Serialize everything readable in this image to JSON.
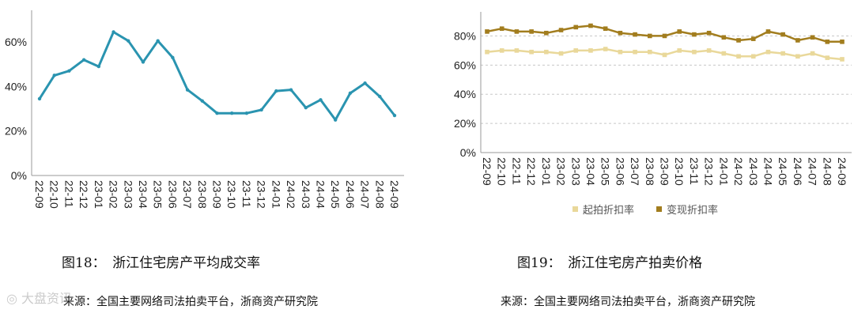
{
  "chart_data": [
    {
      "type": "line",
      "title": "",
      "xlabel": "",
      "ylabel": "",
      "ylim": [
        0,
        70
      ],
      "y_ticks": [
        "0%",
        "20%",
        "40%",
        "60%"
      ],
      "y_tick_values": [
        0,
        20,
        40,
        60
      ],
      "grid": false,
      "categories": [
        "22-09",
        "22-10",
        "22-11",
        "22-12",
        "23-01",
        "23-02",
        "23-03",
        "23-04",
        "23-05",
        "23-06",
        "23-07",
        "23-08",
        "23-09",
        "23-10",
        "23-11",
        "23-12",
        "24-01",
        "24-02",
        "24-03",
        "24-04",
        "24-05",
        "24-06",
        "24-07",
        "24-08",
        "24-09"
      ],
      "series": [
        {
          "color": "#2a94b0",
          "values": [
            34.5,
            45,
            47,
            52,
            49,
            64.5,
            60.5,
            51,
            60.5,
            53,
            38.5,
            33.5,
            28,
            28,
            28,
            29.5,
            38,
            38.5,
            30.5,
            34,
            25,
            37,
            41.5,
            35.5,
            27
          ]
        }
      ]
    },
    {
      "type": "line",
      "title": "",
      "xlabel": "",
      "ylabel": "",
      "ylim": [
        0,
        90
      ],
      "y_ticks": [
        "0%",
        "20%",
        "40%",
        "60%",
        "80%"
      ],
      "y_tick_values": [
        0,
        20,
        40,
        60,
        80
      ],
      "grid": true,
      "legend_position": "bottom",
      "categories": [
        "22-09",
        "22-10",
        "22-11",
        "22-12",
        "23-01",
        "23-02",
        "23-03",
        "23-04",
        "23-05",
        "23-06",
        "23-07",
        "23-08",
        "23-09",
        "23-10",
        "23-11",
        "23-12",
        "24-01",
        "24-02",
        "24-03",
        "24-04",
        "24-05",
        "24-06",
        "24-07",
        "24-08",
        "24-09"
      ],
      "series": [
        {
          "name": "起拍折扣率",
          "color": "#e9d89a",
          "values": [
            69,
            70,
            70,
            69,
            69,
            68,
            70,
            70,
            71,
            69,
            69,
            69,
            67,
            70,
            69,
            70,
            68,
            66,
            66,
            69,
            68,
            66,
            68,
            65,
            64
          ]
        },
        {
          "name": "变现折扣率",
          "color": "#a27d1e",
          "values": [
            83,
            85,
            83,
            83,
            82,
            84,
            86,
            87,
            85,
            82,
            81,
            80,
            80,
            83,
            81,
            82,
            79,
            77,
            78,
            83,
            81,
            77,
            79,
            76,
            76
          ]
        }
      ]
    }
  ],
  "captions": {
    "fig18": "图18：　浙江住宅房产平均成交率",
    "fig19": "图19：　浙江住宅房产拍卖价格",
    "source_left": "来源：全国主要网络司法拍卖平台，浙商资产研究院",
    "source_right": "来源：全国主要网络司法拍卖平台，浙商资产研究院"
  },
  "watermark": "大盘资讯"
}
